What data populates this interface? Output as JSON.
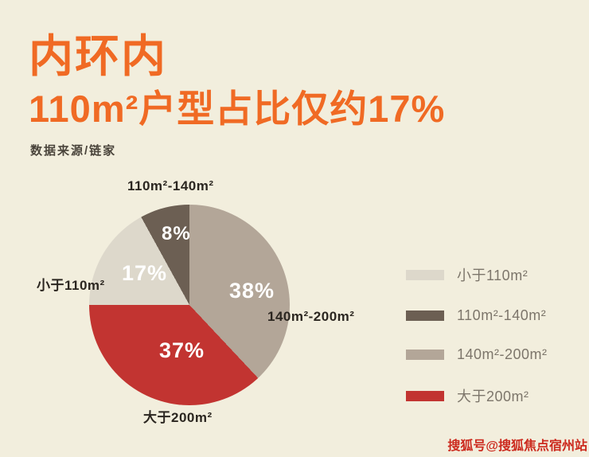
{
  "page": {
    "background": "#f2eedd",
    "accent_color": "#f06a24",
    "title": "内环内",
    "subtitle": "110m²户型占比仅约17%",
    "source": "数据来源/链家",
    "watermark": "搜狐号@搜狐焦点宿州站",
    "watermark_color": "#cc2a1e"
  },
  "chart_data": {
    "type": "pie",
    "title": "内环内 110m²户型占比仅约17%",
    "source": "数据来源/链家",
    "start_angle_deg": 0,
    "direction": "clockwise",
    "slices": [
      {
        "name": "140m²-200m²",
        "value": 38,
        "pct_label": "38%",
        "color": "#b3a698"
      },
      {
        "name": "大于200m²",
        "value": 37,
        "pct_label": "37%",
        "color": "#c23431"
      },
      {
        "name": "小于110m²",
        "value": 17,
        "pct_label": "17%",
        "color": "#ddd8cb"
      },
      {
        "name": "110m²-140m²",
        "value": 8,
        "pct_label": "8%",
        "color": "#6c5f53"
      }
    ],
    "callouts": {
      "top": "110m²-140m²",
      "left": "小于110m²",
      "right": "140m²-200m²",
      "bottom": "大于200m²"
    },
    "legend_position": "right",
    "legend": [
      {
        "label": "小于110m²",
        "color": "#ddd8cb"
      },
      {
        "label": "110m²-140m²",
        "color": "#6c5f53"
      },
      {
        "label": "140m²-200m²",
        "color": "#b3a698"
      },
      {
        "label": "大于200m²",
        "color": "#c23431"
      }
    ]
  }
}
